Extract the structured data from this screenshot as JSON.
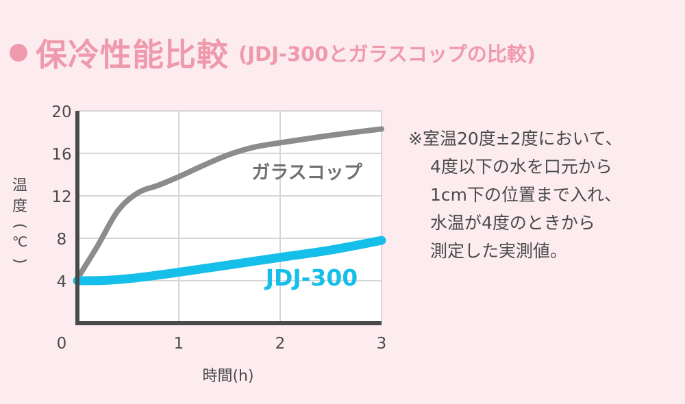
{
  "title": {
    "main": "保冷性能比較",
    "sub": "(JDJ-300とガラスコップの比較)"
  },
  "colors": {
    "background": "#fcecef",
    "accent_pink": "#ef9aac",
    "series_glass": "#8c8c8f",
    "series_jdj": "#16bfe9",
    "axis": "#4a4a4a",
    "grid": "#d6d6d6",
    "plot_bg": "#ffffff"
  },
  "chart_data": {
    "type": "line",
    "x_ticks": [
      "0",
      "1",
      "2",
      "3"
    ],
    "y_ticks": [
      "20",
      "16",
      "12",
      "8",
      "4"
    ],
    "xlim": [
      0,
      3
    ],
    "ylim": [
      0,
      20
    ],
    "xlabel": "時間(h)",
    "ylabel_chars": [
      "温",
      "度",
      "(",
      "℃",
      ")"
    ],
    "grid": true,
    "series": [
      {
        "name": "ガラスコップ",
        "color": "#8c8c8f",
        "x": [
          0,
          0.2,
          0.4,
          0.6,
          0.8,
          1.0,
          1.25,
          1.5,
          1.75,
          2.0,
          2.5,
          3.0
        ],
        "y": [
          4.2,
          7.3,
          10.6,
          12.3,
          13.0,
          13.8,
          14.9,
          15.9,
          16.6,
          17.0,
          17.7,
          18.3
        ]
      },
      {
        "name": "JDJ-300",
        "color": "#16bfe9",
        "x": [
          0,
          0.3,
          0.6,
          1.0,
          1.5,
          2.0,
          2.5,
          3.0
        ],
        "y": [
          4.0,
          4.05,
          4.3,
          4.8,
          5.5,
          6.2,
          6.9,
          7.8
        ]
      }
    ]
  },
  "note": {
    "lines": [
      "※室温20度±2度において、",
      "4度以下の水を口元から",
      "1cm下の位置まで入れ、",
      "水温が4度のときから",
      "測定した実測値。"
    ]
  }
}
